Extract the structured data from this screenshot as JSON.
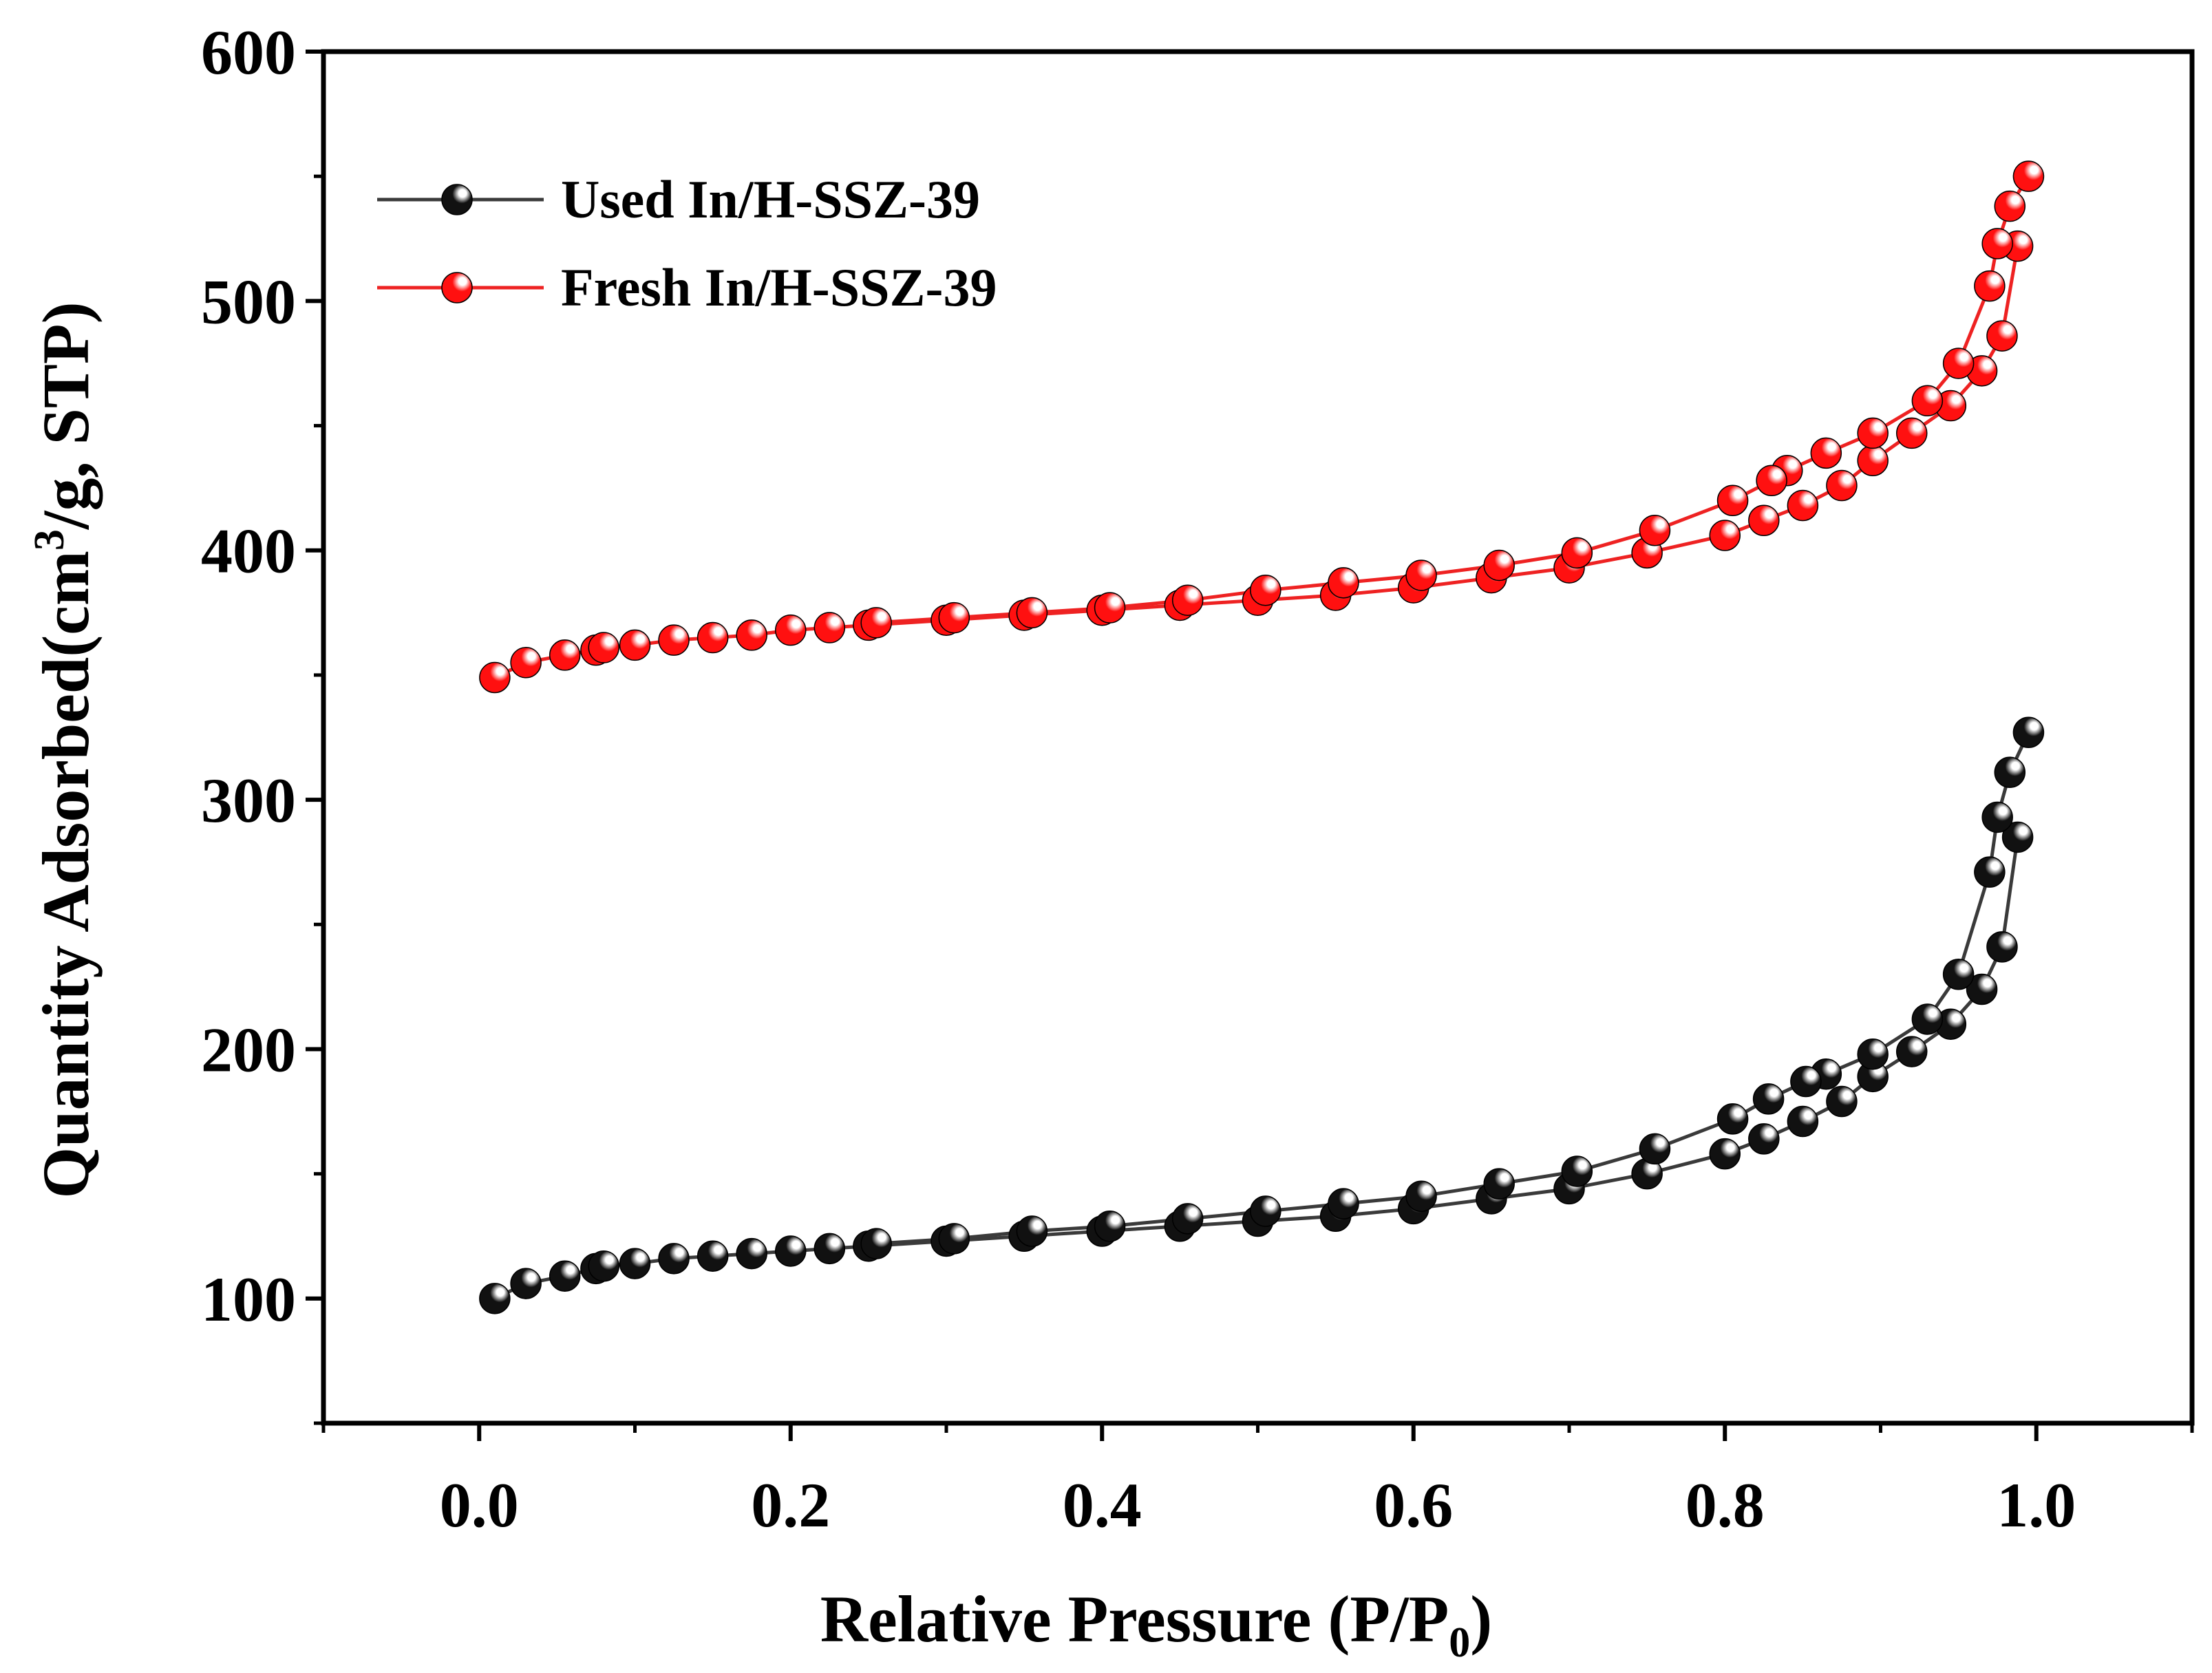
{
  "chart_data": {
    "type": "scatter",
    "title": "",
    "xlabel": "Relative Pressure (P/P",
    "xlabel_sub": "0",
    "xlabel_end": ")",
    "ylabel": "Quantity Adsorbed(cm",
    "ylabel_sup": "3",
    "ylabel_end": "/g, STP)",
    "xlim": [
      -0.1,
      1.1
    ],
    "ylim": [
      50,
      600
    ],
    "xticks": [
      0.0,
      0.2,
      0.4,
      0.6,
      0.8,
      1.0
    ],
    "xtick_labels": [
      "0.0",
      "0.2",
      "0.4",
      "0.6",
      "0.8",
      "1.0"
    ],
    "yticks": [
      100,
      200,
      300,
      400,
      500,
      600
    ],
    "ytick_labels": [
      "100",
      "200",
      "300",
      "400",
      "500",
      "600"
    ],
    "grid": false,
    "legend_position": "top-left",
    "series": [
      {
        "name": "Used In/H-SSZ-39",
        "color": "#3a3a3a",
        "marker_color": "#111111",
        "adsorption": {
          "x": [
            0.01,
            0.03,
            0.055,
            0.075,
            0.08,
            0.1,
            0.125,
            0.15,
            0.175,
            0.2,
            0.225,
            0.25,
            0.3,
            0.35,
            0.4,
            0.45,
            0.5,
            0.55,
            0.6,
            0.65,
            0.7,
            0.75,
            0.8,
            0.825,
            0.85,
            0.875,
            0.895,
            0.92,
            0.945,
            0.965,
            0.978,
            0.988
          ],
          "y": [
            100,
            106,
            109,
            112,
            113,
            114,
            116,
            117,
            118,
            119,
            120,
            121,
            123,
            125,
            127,
            129,
            131,
            133,
            136,
            140,
            144,
            150,
            158,
            164,
            171,
            179,
            189,
            199,
            210,
            224,
            241,
            285
          ]
        },
        "desorption": {
          "x": [
            0.995,
            0.983,
            0.975,
            0.97,
            0.95,
            0.93,
            0.895,
            0.865,
            0.852,
            0.828,
            0.805,
            0.755,
            0.705,
            0.655,
            0.605,
            0.555,
            0.505,
            0.455,
            0.405,
            0.355,
            0.305,
            0.255
          ],
          "y": [
            327,
            311,
            293,
            271,
            230,
            212,
            198,
            190,
            187,
            180,
            172,
            160,
            151,
            146,
            141,
            138,
            135,
            132,
            129,
            127,
            124,
            122
          ]
        }
      },
      {
        "name": "Fresh In/H-SSZ-39",
        "color": "#ee2222",
        "marker_color": "#ff1010",
        "adsorption": {
          "x": [
            0.01,
            0.03,
            0.055,
            0.075,
            0.08,
            0.1,
            0.125,
            0.15,
            0.175,
            0.2,
            0.225,
            0.25,
            0.3,
            0.35,
            0.4,
            0.45,
            0.5,
            0.55,
            0.6,
            0.65,
            0.7,
            0.75,
            0.8,
            0.825,
            0.85,
            0.875,
            0.895,
            0.92,
            0.945,
            0.965,
            0.978,
            0.988
          ],
          "y": [
            349,
            355,
            358,
            360,
            361,
            362,
            364,
            365,
            366,
            368,
            369,
            370,
            372,
            374,
            376,
            378,
            380,
            382,
            385,
            389,
            393,
            399,
            406,
            412,
            418,
            426,
            436,
            447,
            458,
            472,
            486,
            522
          ]
        },
        "desorption": {
          "x": [
            0.995,
            0.983,
            0.975,
            0.97,
            0.95,
            0.93,
            0.895,
            0.865,
            0.84,
            0.83,
            0.805,
            0.755,
            0.705,
            0.655,
            0.605,
            0.555,
            0.505,
            0.455,
            0.405,
            0.355,
            0.305,
            0.255
          ],
          "y": [
            550,
            538,
            523,
            506,
            475,
            460,
            447,
            439,
            432,
            428,
            420,
            408,
            399,
            394,
            390,
            387,
            384,
            380,
            377,
            375,
            373,
            371
          ]
        }
      }
    ]
  }
}
